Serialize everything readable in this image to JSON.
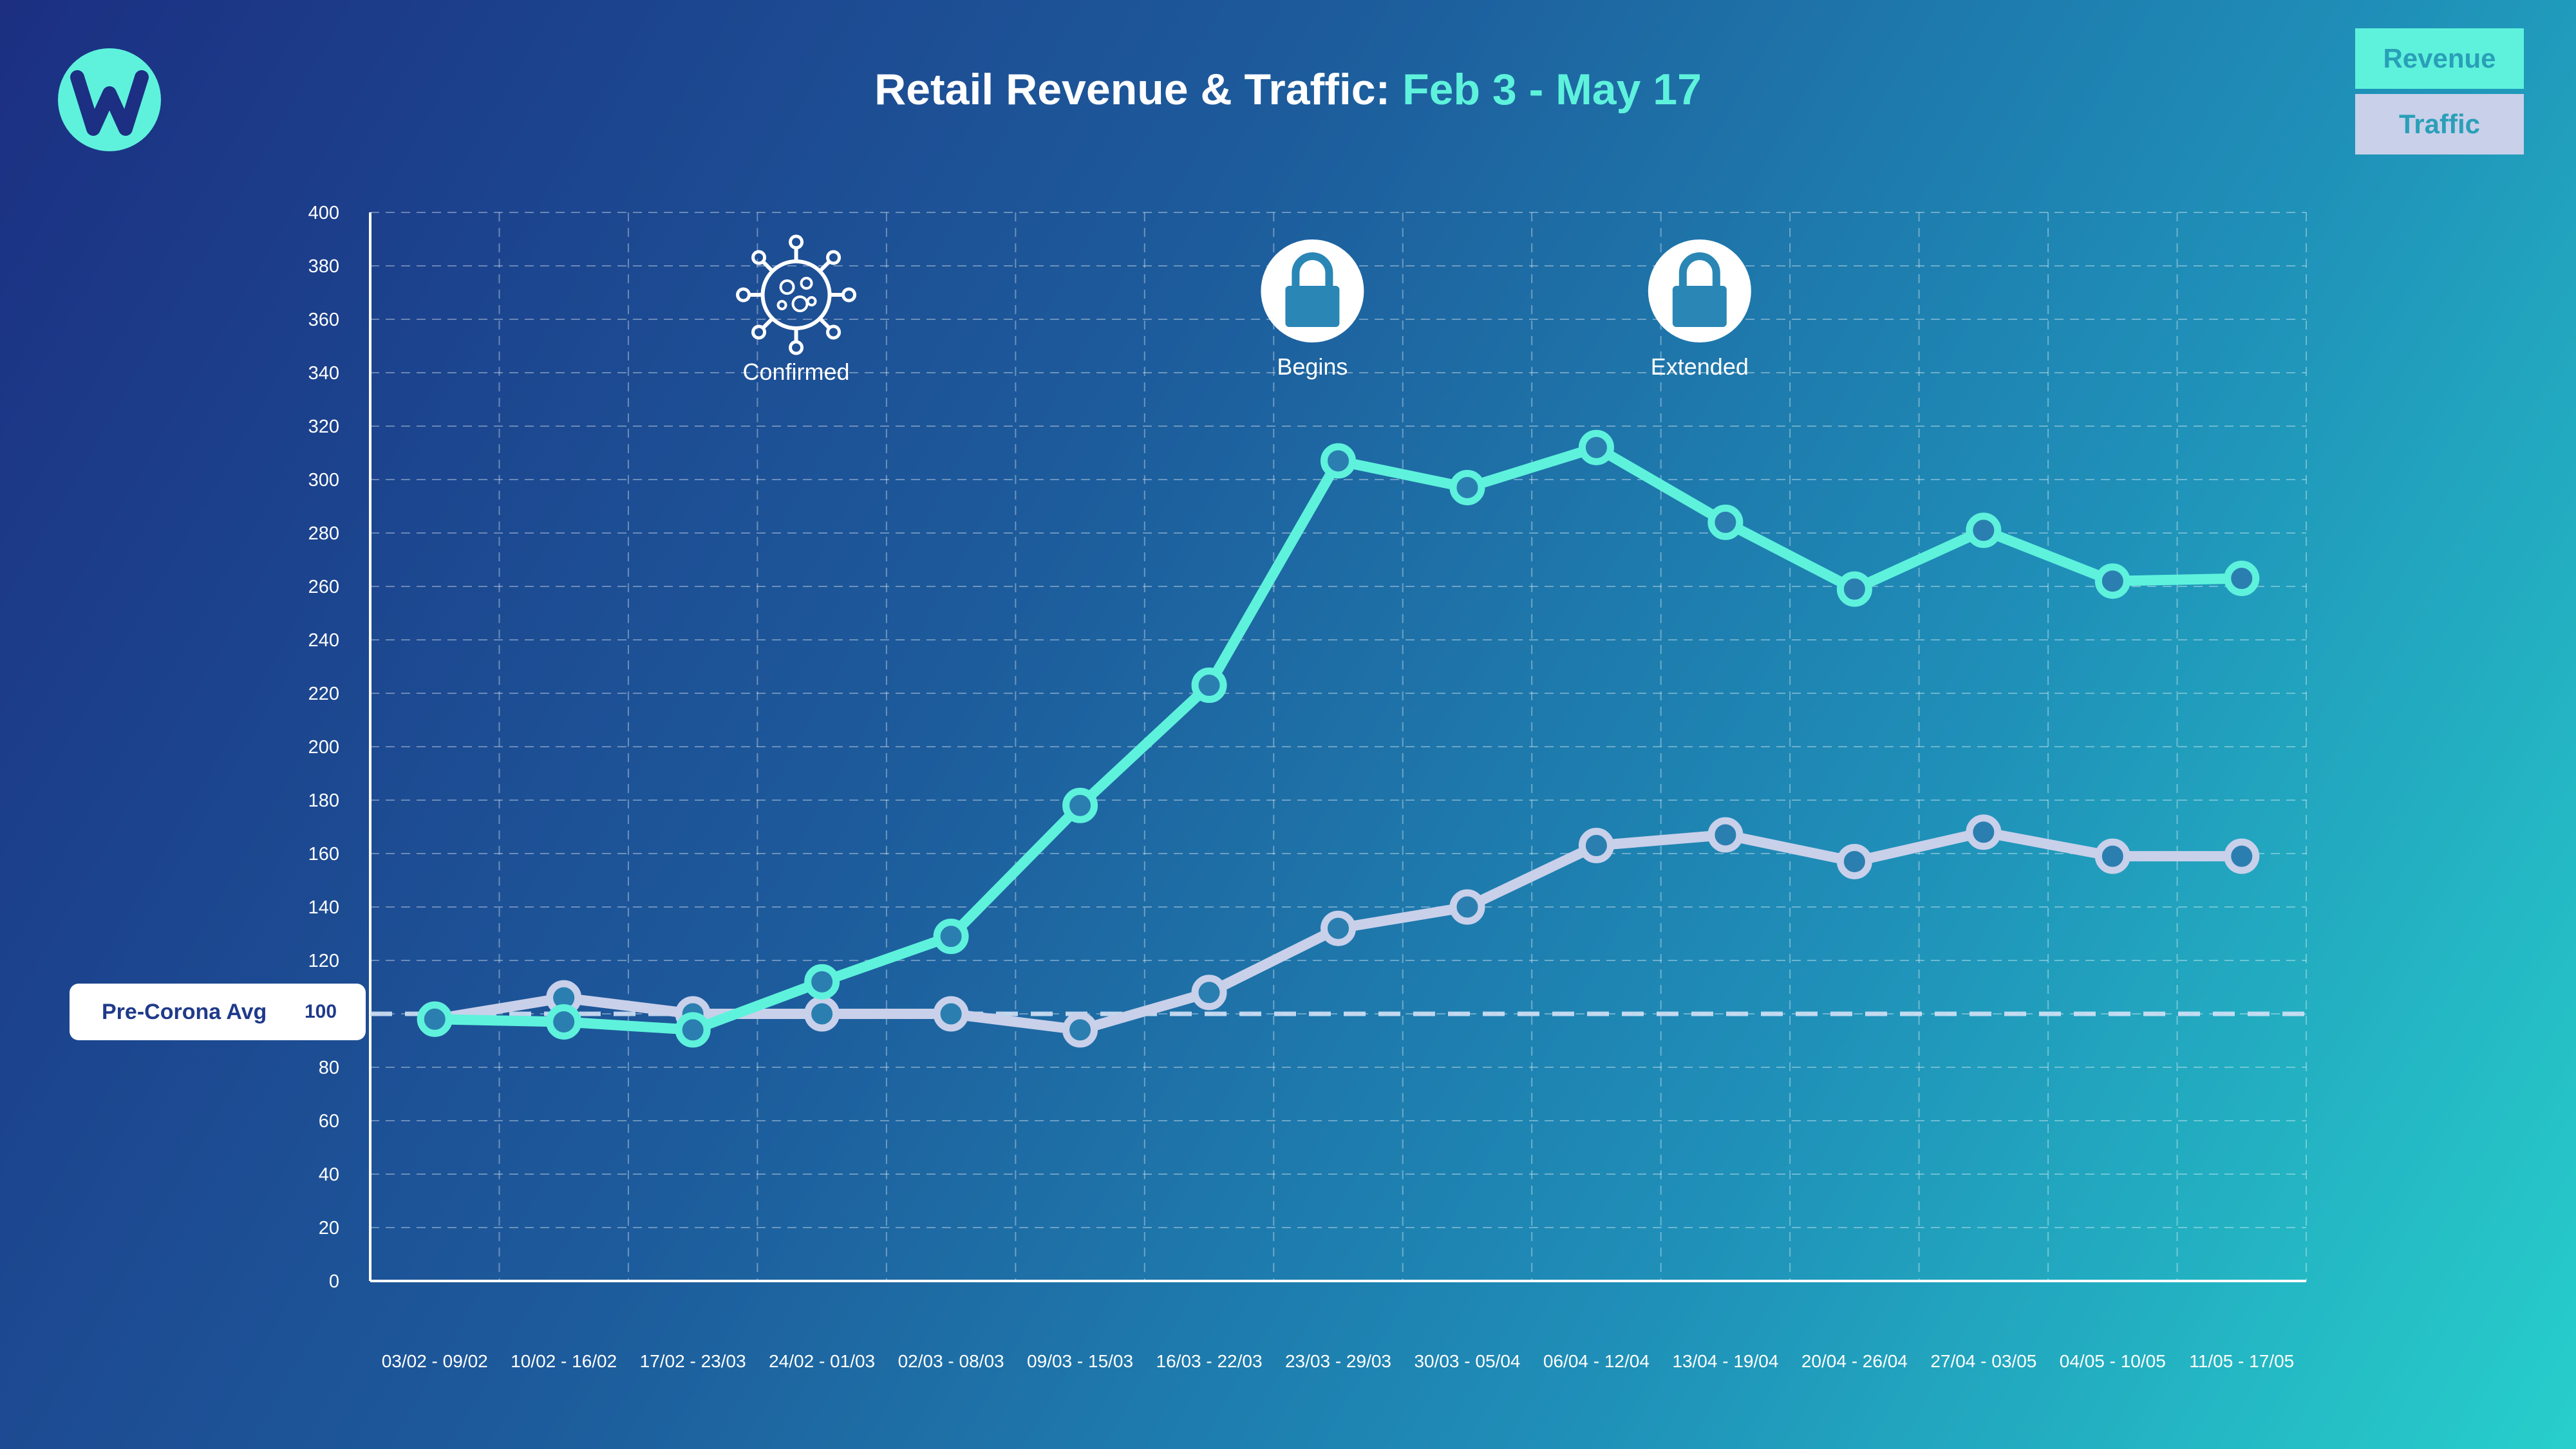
{
  "title": {
    "main": "Retail Revenue & Traffic: ",
    "accent": "Feb 3 - May 17"
  },
  "legend": {
    "revenue": "Revenue",
    "traffic": "Traffic"
  },
  "baseline": {
    "label": "Pre-Corona Avg",
    "value": "100"
  },
  "events": [
    {
      "label": "Confirmed",
      "icon": "virus-icon",
      "index": 3
    },
    {
      "label": "Begins",
      "icon": "lock-icon",
      "index": 7
    },
    {
      "label": "Extended",
      "icon": "lock-icon",
      "index": 10
    }
  ],
  "colors": {
    "revenue": "#5ef2dc",
    "traffic": "#c9d0ea"
  },
  "chart_data": {
    "type": "line",
    "categories": [
      "03/02 - 09/02",
      "10/02 - 16/02",
      "17/02 - 23/03",
      "24/02 - 01/03",
      "02/03 - 08/03",
      "09/03 - 15/03",
      "16/03 - 22/03",
      "23/03 - 29/03",
      "30/03 - 05/04",
      "06/04 - 12/04",
      "13/04 - 19/04",
      "20/04 - 26/04",
      "27/04 - 03/05",
      "04/05 - 10/05",
      "11/05 - 17/05"
    ],
    "series": [
      {
        "name": "Revenue",
        "values": [
          98,
          97,
          94,
          112,
          129,
          178,
          223,
          307,
          297,
          312,
          284,
          259,
          281,
          262,
          263
        ]
      },
      {
        "name": "Traffic",
        "values": [
          98,
          106,
          100,
          100,
          100,
          94,
          108,
          132,
          140,
          163,
          167,
          157,
          168,
          159,
          159
        ]
      }
    ],
    "yticks": [
      0,
      20,
      40,
      60,
      80,
      100,
      120,
      140,
      160,
      180,
      200,
      220,
      240,
      260,
      280,
      300,
      320,
      340,
      360,
      380,
      400
    ],
    "ylim": [
      0,
      400
    ],
    "reference_line": 100,
    "grid": true
  }
}
